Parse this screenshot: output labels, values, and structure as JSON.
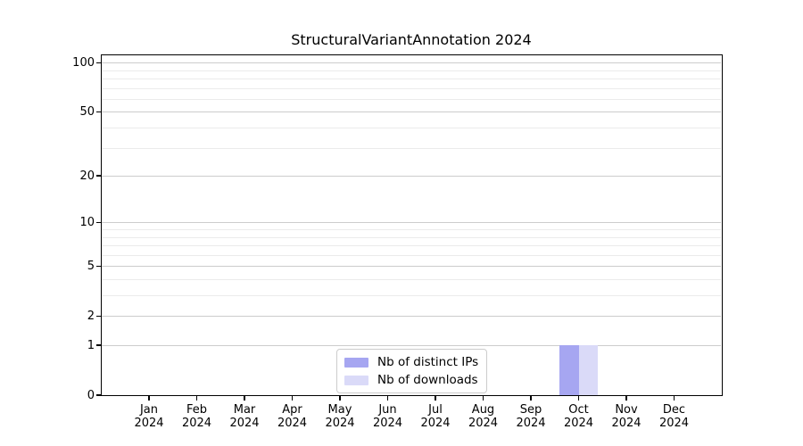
{
  "chart_data": {
    "type": "bar",
    "title": "StructuralVariantAnnotation 2024",
    "categories": [
      "Jan 2024",
      "Feb 2024",
      "Mar 2024",
      "Apr 2024",
      "May 2024",
      "Jun 2024",
      "Jul 2024",
      "Aug 2024",
      "Sep 2024",
      "Oct 2024",
      "Nov 2024",
      "Dec 2024"
    ],
    "series": [
      {
        "name": "Nb of distinct IPs",
        "color": "#a6a6f1",
        "values": [
          0,
          0,
          0,
          0,
          0,
          0,
          0,
          0,
          0,
          1,
          0,
          0
        ]
      },
      {
        "name": "Nb of downloads",
        "color": "#dadaf8",
        "values": [
          0,
          0,
          0,
          0,
          0,
          0,
          0,
          0,
          0,
          1,
          0,
          0
        ]
      }
    ],
    "xlabel": "",
    "ylabel": "",
    "y_scale": "log10(value+1)",
    "y_ticks": [
      0,
      1,
      2,
      5,
      10,
      20,
      50,
      100
    ],
    "y_minor_gridlines": [
      3,
      4,
      6,
      7,
      8,
      9,
      30,
      40,
      60,
      70,
      80,
      90
    ],
    "ylim": [
      0,
      112
    ],
    "grid": "horizontal",
    "legend_position": "lower center"
  }
}
